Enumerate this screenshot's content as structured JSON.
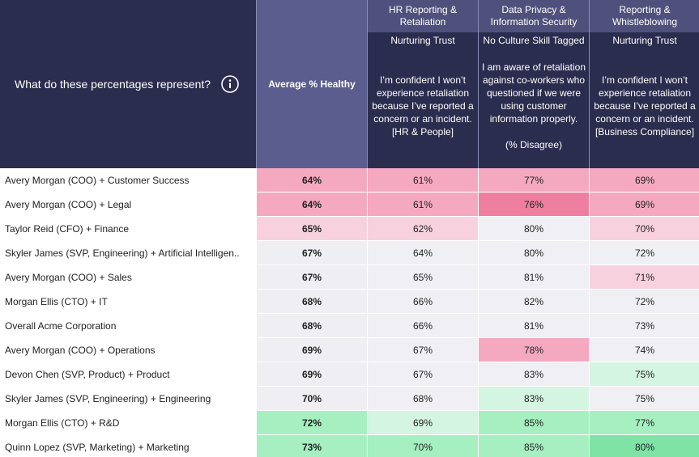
{
  "header": {
    "question": "What do these percentages represent?",
    "average_label": "Average % Healthy"
  },
  "columns": [
    {
      "title": "HR Reporting & Retaliation",
      "tag": "Nurturing Trust",
      "description": "I’m confident I won’t experience retaliation because I’ve reported a concern or an incident. [HR & People]"
    },
    {
      "title": "Data Privacy & Information Security",
      "tag": "No Culture Skill Tagged",
      "description": "I am aware of retaliation against co-workers who questioned if we were using customer information properly.",
      "note": "(% Disagree)"
    },
    {
      "title": "Reporting & Whistleblowing",
      "tag": "Nurturing Trust",
      "description": "I’m confident I won’t experience retaliation because I’ve reported a concern or an incident. [Business Compliance]"
    }
  ],
  "table": {
    "rows": [
      {
        "label": "Avery Morgan (COO) + Customer Success",
        "cells": [
          {
            "text": "64%",
            "color": "#f4a9c1"
          },
          {
            "text": "61%",
            "color": "#f4a9c1"
          },
          {
            "text": "77%",
            "color": "#f4a9c1"
          },
          {
            "text": "69%",
            "color": "#f4a9c1"
          }
        ]
      },
      {
        "label": "Avery Morgan (COO) + Legal",
        "cells": [
          {
            "text": "64%",
            "color": "#f4a9c1"
          },
          {
            "text": "61%",
            "color": "#f4a9c1"
          },
          {
            "text": "76%",
            "color": "#ee7fa1"
          },
          {
            "text": "69%",
            "color": "#f4a9c1"
          }
        ]
      },
      {
        "label": "Taylor Reid (CFO) + Finance",
        "cells": [
          {
            "text": "65%",
            "color": "#f7d2de"
          },
          {
            "text": "62%",
            "color": "#f7d2de"
          },
          {
            "text": "80%",
            "color": "#f0f0f4"
          },
          {
            "text": "70%",
            "color": "#f7d2de"
          }
        ]
      },
      {
        "label": "Skyler James (SVP, Engineering) + Artificial Intelligen..",
        "cells": [
          {
            "text": "67%",
            "color": "#eeeef3"
          },
          {
            "text": "64%",
            "color": "#f0f0f4"
          },
          {
            "text": "80%",
            "color": "#f0f0f4"
          },
          {
            "text": "72%",
            "color": "#f0f0f4"
          }
        ]
      },
      {
        "label": "Avery Morgan (COO) + Sales",
        "cells": [
          {
            "text": "67%",
            "color": "#eeeef3"
          },
          {
            "text": "65%",
            "color": "#f0f0f4"
          },
          {
            "text": "81%",
            "color": "#f0f0f4"
          },
          {
            "text": "71%",
            "color": "#f7d2de"
          }
        ]
      },
      {
        "label": "Morgan Ellis (CTO) + IT",
        "cells": [
          {
            "text": "68%",
            "color": "#eeeef3"
          },
          {
            "text": "66%",
            "color": "#f0f0f4"
          },
          {
            "text": "82%",
            "color": "#f0f0f4"
          },
          {
            "text": "72%",
            "color": "#f0f0f4"
          }
        ]
      },
      {
        "label": "Overall Acme Corporation",
        "cells": [
          {
            "text": "68%",
            "color": "#eeeef3"
          },
          {
            "text": "66%",
            "color": "#f0f0f4"
          },
          {
            "text": "81%",
            "color": "#f0f0f4"
          },
          {
            "text": "73%",
            "color": "#f0f0f4"
          }
        ]
      },
      {
        "label": "Avery Morgan (COO) + Operations",
        "cells": [
          {
            "text": "69%",
            "color": "#eeeef3"
          },
          {
            "text": "67%",
            "color": "#f0f0f4"
          },
          {
            "text": "78%",
            "color": "#f4a9c1"
          },
          {
            "text": "74%",
            "color": "#f0f0f4"
          }
        ]
      },
      {
        "label": "Devon Chen (SVP, Product) + Product",
        "cells": [
          {
            "text": "69%",
            "color": "#eeeef3"
          },
          {
            "text": "67%",
            "color": "#f0f0f4"
          },
          {
            "text": "83%",
            "color": "#f0f0f4"
          },
          {
            "text": "75%",
            "color": "#d4f5e1"
          }
        ]
      },
      {
        "label": "Skyler James (SVP, Engineering) + Engineering",
        "cells": [
          {
            "text": "70%",
            "color": "#eeeef3"
          },
          {
            "text": "68%",
            "color": "#f0f0f4"
          },
          {
            "text": "83%",
            "color": "#d4f5e1"
          },
          {
            "text": "75%",
            "color": "#f0f0f4"
          }
        ]
      },
      {
        "label": "Morgan Ellis (CTO) + R&D",
        "cells": [
          {
            "text": "72%",
            "color": "#a6efc1"
          },
          {
            "text": "69%",
            "color": "#d4f5e1"
          },
          {
            "text": "85%",
            "color": "#a6efc1"
          },
          {
            "text": "77%",
            "color": "#a6efc1"
          }
        ]
      },
      {
        "label": "Quinn Lopez (SVP, Marketing) + Marketing",
        "cells": [
          {
            "text": "73%",
            "color": "#a6efc1"
          },
          {
            "text": "70%",
            "color": "#a6efc1"
          },
          {
            "text": "85%",
            "color": "#a6efc1"
          },
          {
            "text": "80%",
            "color": "#7fe3a6"
          }
        ]
      }
    ]
  }
}
